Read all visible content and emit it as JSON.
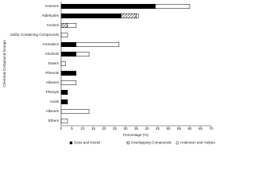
{
  "chart_data": {
    "type": "stacked-barh",
    "xlabel": "Percentage (%)",
    "ylabel": "Chemical Compound Groups",
    "categories": [
      "Ketones",
      "Aldehydes",
      "Amines",
      "Sulfur Containing Compounds",
      "Aromatics",
      "Alcohols",
      "Esters",
      "Phenols",
      "Alkanes",
      "Phenyls",
      "Acids",
      "Alkenes",
      "Ethers"
    ],
    "series": [
      {
        "name": "Soos and Koziel",
        "color": "#000000",
        "hatch": false,
        "values": [
          44,
          28,
          0,
          0,
          7,
          7,
          0,
          7,
          0,
          3,
          3,
          0,
          0
        ]
      },
      {
        "name": "Overlapping Compounds",
        "color": "#000000",
        "hatch": true,
        "values": [
          0,
          7,
          3,
          0,
          0,
          0,
          0,
          0,
          0,
          0,
          0,
          0,
          0
        ]
      },
      {
        "name": "Anderson and Vulpius",
        "color": "#ffffff",
        "hatch": false,
        "values": [
          16,
          1,
          4,
          3,
          20,
          6,
          2,
          0,
          7,
          0,
          0,
          13,
          3
        ]
      }
    ],
    "xlim": [
      0,
      70
    ],
    "xticks": [
      0,
      5,
      10,
      15,
      20,
      25,
      30,
      35,
      40,
      45,
      50,
      55,
      60,
      65,
      70
    ],
    "legend": "bottom"
  }
}
